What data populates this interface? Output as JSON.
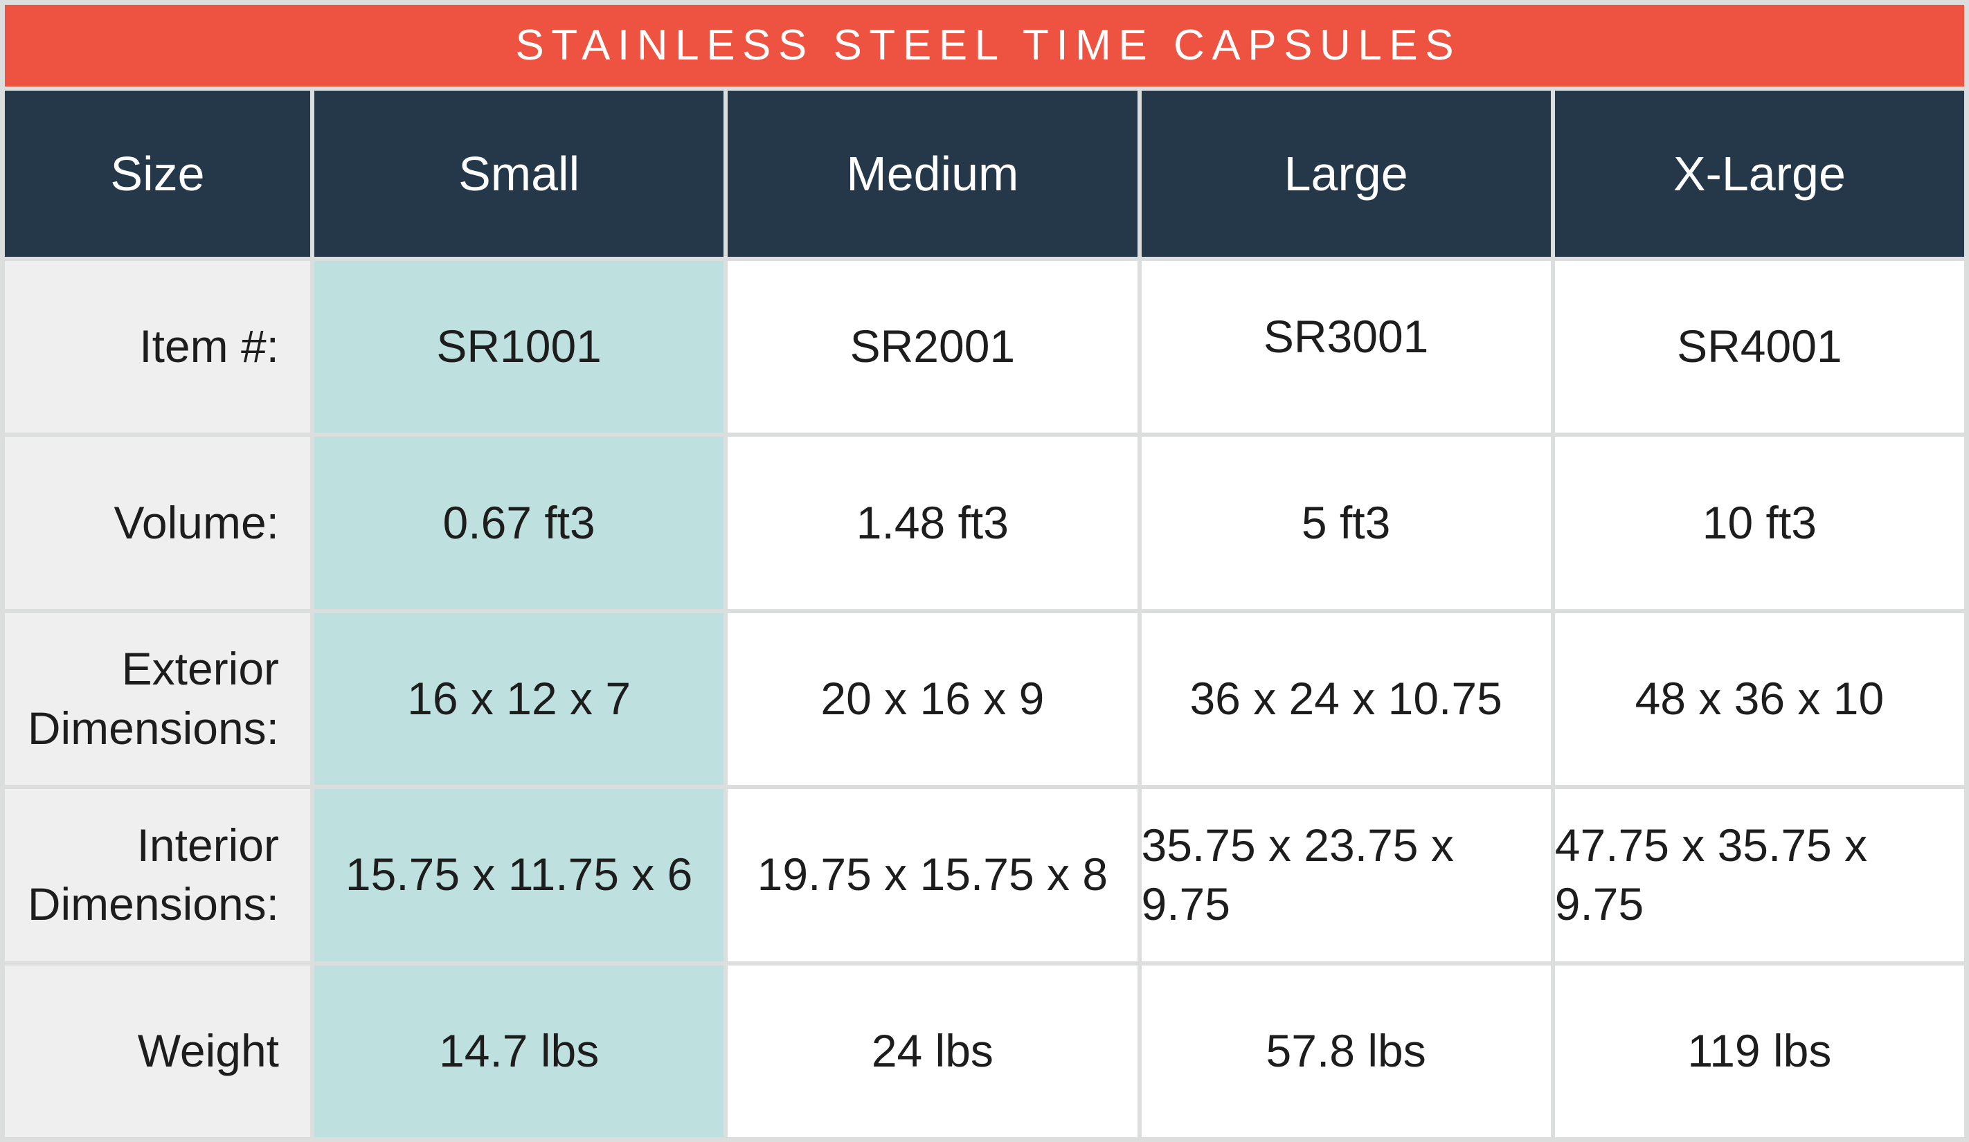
{
  "title": "STAINLESS STEEL TIME CAPSULES",
  "colors": {
    "title_bar": "#ee5341",
    "header": "#253849",
    "highlight_column": "#bee1df",
    "label_column": "#efefef",
    "grid_lines": "#dcdedd",
    "cell_background": "#ffffff",
    "body_text": "#1d1d1d",
    "inverse_text": "#ffffff"
  },
  "table": {
    "columns": [
      "Size",
      "Small",
      "Medium",
      "Large",
      "X-Large"
    ],
    "highlighted_column": "Small",
    "rows": [
      {
        "label": "Item #:",
        "values": [
          "SR1001",
          "SR2001",
          "SR3001",
          "SR4001"
        ]
      },
      {
        "label": "Volume:",
        "values": [
          "0.67 ft3",
          "1.48 ft3",
          "5 ft3",
          "10 ft3"
        ]
      },
      {
        "label": "Exterior Dimensions:",
        "values": [
          "16 x 12 x 7",
          "20 x 16 x 9",
          "36 x 24 x 10.75",
          "48 x 36 x 10"
        ]
      },
      {
        "label": "Interior Dimensions:",
        "values": [
          "15.75 x 11.75 x 6",
          "19.75 x 15.75 x 8",
          "35.75 x 23.75 x 9.75",
          "47.75 x 35.75 x 9.75"
        ]
      },
      {
        "label": "Weight",
        "values": [
          "14.7 lbs",
          "24 lbs",
          "57.8 lbs",
          "119 lbs"
        ]
      }
    ]
  }
}
